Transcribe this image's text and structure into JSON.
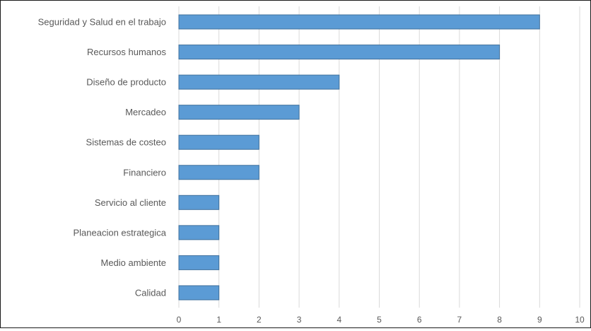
{
  "chart_data": {
    "type": "bar",
    "orientation": "horizontal",
    "categories": [
      "Seguridad y Salud en el trabajo",
      "Recursos humanos",
      "Diseño de producto",
      "Mercadeo",
      "Sistemas de costeo",
      "Financiero",
      "Servicio al cliente",
      "Planeacion estrategica",
      "Medio ambiente",
      "Calidad"
    ],
    "values": [
      9,
      8,
      4,
      3,
      2,
      2,
      1,
      1,
      1,
      1
    ],
    "xlim": [
      0,
      10
    ],
    "xticks": [
      "0",
      "1",
      "2",
      "3",
      "4",
      "5",
      "6",
      "7",
      "8",
      "9",
      "10"
    ],
    "title": "",
    "xlabel": "",
    "ylabel": "",
    "grid": "vertical",
    "legend": "none",
    "bar_color": "#5b9bd5",
    "bar_edge_color": "#41719c",
    "grid_color": "#d9d9d9"
  }
}
